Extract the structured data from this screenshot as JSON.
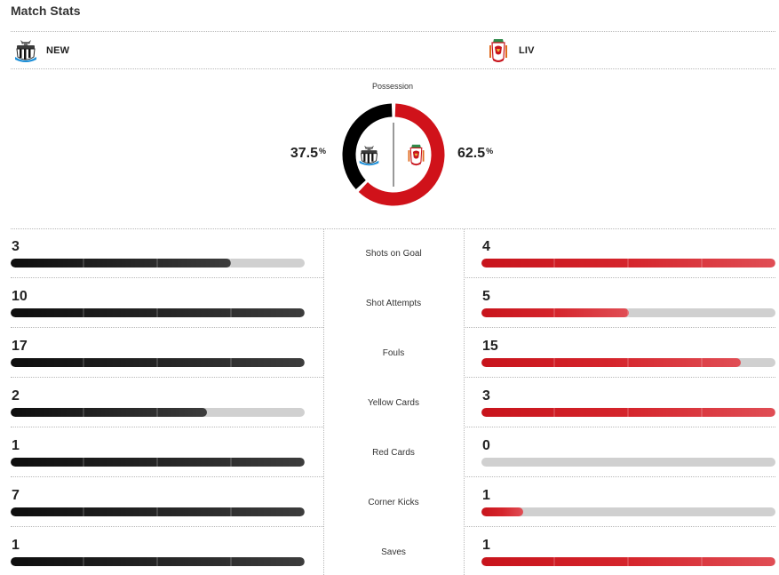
{
  "header": {
    "title": "Match Stats"
  },
  "teams": {
    "home": {
      "abbr": "NEW",
      "color": "#000000",
      "crest_icon": "newcastle-crest-icon"
    },
    "away": {
      "abbr": "LIV",
      "color": "#d0121a",
      "crest_icon": "liverpool-crest-icon"
    }
  },
  "possession": {
    "label": "Possession",
    "home_value": "37.5",
    "away_value": "62.5",
    "home_fraction": 0.375,
    "away_fraction": 0.625,
    "unit": "%"
  },
  "stats": [
    {
      "label": "Shots on Goal",
      "home": "3",
      "away": "4",
      "home_fill": 0.75,
      "away_fill": 1.0
    },
    {
      "label": "Shot Attempts",
      "home": "10",
      "away": "5",
      "home_fill": 1.0,
      "away_fill": 0.5
    },
    {
      "label": "Fouls",
      "home": "17",
      "away": "15",
      "home_fill": 1.0,
      "away_fill": 0.882
    },
    {
      "label": "Yellow Cards",
      "home": "2",
      "away": "3",
      "home_fill": 0.667,
      "away_fill": 1.0
    },
    {
      "label": "Red Cards",
      "home": "1",
      "away": "0",
      "home_fill": 1.0,
      "away_fill": 0.0
    },
    {
      "label": "Corner Kicks",
      "home": "7",
      "away": "1",
      "home_fill": 1.0,
      "away_fill": 0.143
    },
    {
      "label": "Saves",
      "home": "1",
      "away": "1",
      "home_fill": 1.0,
      "away_fill": 1.0
    }
  ]
}
